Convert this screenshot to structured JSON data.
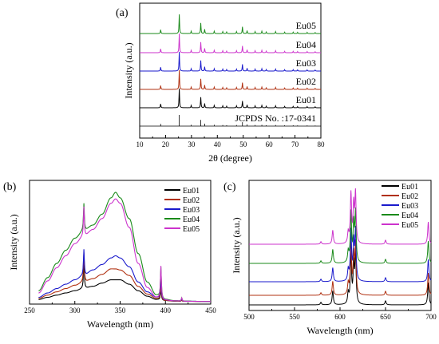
{
  "chart_data": [
    {
      "panel": "(a)",
      "type": "line",
      "xlabel": "2θ (degree)",
      "ylabel": "Intensity (a.u.)",
      "xlim": [
        10,
        80
      ],
      "xticks": [
        10,
        20,
        30,
        40,
        50,
        60,
        70,
        80
      ],
      "reference": "JCPDS No. :17-0341",
      "reference_peaks": [
        18.1,
        25.3,
        29.9,
        33.6,
        35.1,
        38.8,
        42.1,
        43.6,
        47.4,
        49.7,
        51.5,
        54.6,
        57.2,
        58.9,
        62.5,
        66.0,
        69.3,
        71.0,
        74.7,
        77.8
      ],
      "series": [
        {
          "name": "Eu05",
          "color": "#1a8a1a"
        },
        {
          "name": "Eu04",
          "color": "#cc33cc"
        },
        {
          "name": "Eu03",
          "color": "#1a1acc"
        },
        {
          "name": "Eu02",
          "color": "#b03010"
        },
        {
          "name": "Eu01",
          "color": "#000000"
        }
      ],
      "peaks": [
        {
          "x": 18.1,
          "h": 0.2
        },
        {
          "x": 25.3,
          "h": 1.0
        },
        {
          "x": 29.9,
          "h": 0.12
        },
        {
          "x": 33.6,
          "h": 0.55
        },
        {
          "x": 35.1,
          "h": 0.22
        },
        {
          "x": 38.8,
          "h": 0.12
        },
        {
          "x": 42.1,
          "h": 0.1
        },
        {
          "x": 43.6,
          "h": 0.08
        },
        {
          "x": 47.4,
          "h": 0.1
        },
        {
          "x": 49.7,
          "h": 0.35
        },
        {
          "x": 51.5,
          "h": 0.15
        },
        {
          "x": 54.6,
          "h": 0.1
        },
        {
          "x": 57.2,
          "h": 0.12
        },
        {
          "x": 58.9,
          "h": 0.08
        },
        {
          "x": 62.5,
          "h": 0.1
        },
        {
          "x": 66.0,
          "h": 0.07
        },
        {
          "x": 69.3,
          "h": 0.07
        },
        {
          "x": 71.0,
          "h": 0.06
        },
        {
          "x": 74.7,
          "h": 0.06
        },
        {
          "x": 77.8,
          "h": 0.05
        }
      ]
    },
    {
      "panel": "(b)",
      "type": "line",
      "xlabel": "Wavelength (nm)",
      "ylabel": "Intensity (a.u.)",
      "xlim": [
        250,
        450
      ],
      "ylim": [
        0,
        1.0
      ],
      "xticks": [
        250,
        300,
        350,
        400,
        450
      ],
      "x": [
        260,
        270,
        280,
        290,
        300,
        310,
        320,
        330,
        340,
        345,
        350,
        360,
        370,
        380,
        390,
        400,
        410,
        420,
        450
      ],
      "series": [
        {
          "name": "Eu01",
          "color": "#000000",
          "values": [
            0.02,
            0.04,
            0.06,
            0.08,
            0.1,
            0.12,
            0.14,
            0.17,
            0.2,
            0.2,
            0.2,
            0.16,
            0.1,
            0.05,
            0.02,
            0.01,
            0.005,
            0.003,
            0.002
          ]
        },
        {
          "name": "Eu02",
          "color": "#b03010",
          "values": [
            0.03,
            0.06,
            0.09,
            0.12,
            0.15,
            0.18,
            0.21,
            0.25,
            0.3,
            0.3,
            0.29,
            0.24,
            0.14,
            0.07,
            0.03,
            0.01,
            0.006,
            0.004,
            0.002
          ]
        },
        {
          "name": "Eu03",
          "color": "#1a1acc",
          "values": [
            0.04,
            0.08,
            0.12,
            0.16,
            0.2,
            0.24,
            0.29,
            0.34,
            0.4,
            0.42,
            0.4,
            0.32,
            0.18,
            0.09,
            0.04,
            0.015,
            0.008,
            0.005,
            0.002
          ]
        },
        {
          "name": "Eu04",
          "color": "#1a8a1a",
          "values": [
            0.1,
            0.22,
            0.35,
            0.47,
            0.58,
            0.65,
            0.7,
            0.8,
            0.95,
            1.0,
            0.95,
            0.76,
            0.44,
            0.18,
            0.06,
            0.02,
            0.01,
            0.005,
            0.002
          ]
        },
        {
          "name": "Eu05",
          "color": "#cc33cc",
          "values": [
            0.08,
            0.19,
            0.31,
            0.42,
            0.53,
            0.6,
            0.66,
            0.76,
            0.9,
            0.94,
            0.9,
            0.68,
            0.35,
            0.13,
            0.04,
            0.015,
            0.008,
            0.004,
            0.002
          ]
        }
      ],
      "spikes": [
        {
          "x": 310,
          "heights": [
            0.25,
            0.27,
            0.24,
            0.25,
            0.27
          ]
        },
        {
          "x": 395,
          "heights": [
            0.1,
            0.13,
            0.2,
            0.28,
            0.3
          ]
        },
        {
          "x": 418,
          "heights": [
            0.01,
            0.01,
            0.02,
            0.03,
            0.03
          ]
        }
      ]
    },
    {
      "panel": "(c)",
      "type": "line",
      "xlabel": "Wavelength (nm)",
      "ylabel": "Intensity (a.u.)",
      "xlim": [
        500,
        700
      ],
      "xticks": [
        500,
        550,
        600,
        650,
        700
      ],
      "series": [
        {
          "name": "Eu01",
          "color": "#000000"
        },
        {
          "name": "Eu02",
          "color": "#b03010"
        },
        {
          "name": "Eu03",
          "color": "#1a1acc"
        },
        {
          "name": "Eu04",
          "color": "#1a8a1a"
        },
        {
          "name": "Eu05",
          "color": "#cc33cc"
        }
      ],
      "peaks": [
        {
          "x": 579,
          "h": 0.05
        },
        {
          "x": 592,
          "h": 0.28
        },
        {
          "x": 609,
          "h": 0.22
        },
        {
          "x": 612,
          "h": 1.0
        },
        {
          "x": 615,
          "h": 0.75
        },
        {
          "x": 617,
          "h": 1.0
        },
        {
          "x": 650,
          "h": 0.08
        },
        {
          "x": 697,
          "h": 0.45
        }
      ]
    }
  ]
}
